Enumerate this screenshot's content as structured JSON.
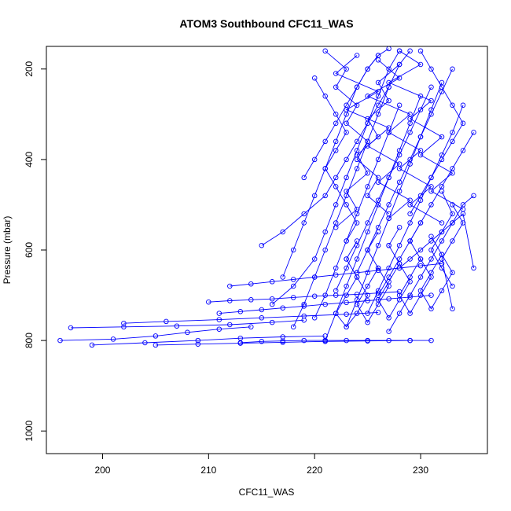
{
  "chart_data": {
    "type": "scatter",
    "title": "ATOM3 Southbound CFC11_WAS",
    "xlabel": "CFC11_WAS",
    "ylabel": "Pressure (mbar)",
    "xlim": [
      194.7,
      236.3
    ],
    "ylim": [
      1050,
      150
    ],
    "y_reversed": true,
    "x_ticks": [
      200,
      210,
      220,
      230
    ],
    "y_ticks": [
      200,
      400,
      600,
      800,
      1000
    ],
    "grid": false,
    "legend": "none",
    "marker": "open-circle",
    "color": "#0000ff",
    "series": [
      {
        "x": [
          196,
          201,
          205,
          208,
          211,
          214
        ],
        "y": [
          800,
          797,
          790,
          782,
          775,
          770
        ]
      },
      {
        "x": [
          197,
          202,
          207,
          212,
          216,
          219
        ],
        "y": [
          772,
          770,
          768,
          765,
          760,
          755
        ]
      },
      {
        "x": [
          199,
          204,
          209,
          213,
          217,
          221
        ],
        "y": [
          810,
          805,
          800,
          795,
          792,
          790
        ]
      },
      {
        "x": [
          202,
          206,
          211,
          215,
          219,
          223,
          226
        ],
        "y": [
          762,
          758,
          754,
          750,
          746,
          742,
          738
        ]
      },
      {
        "x": [
          205,
          209,
          213,
          217,
          221,
          225,
          229
        ],
        "y": [
          810,
          808,
          806,
          804,
          802,
          801,
          800
        ]
      },
      {
        "x": [
          210,
          212,
          214,
          216,
          218,
          220,
          222,
          224,
          226,
          228
        ],
        "y": [
          715,
          712,
          710,
          708,
          705,
          702,
          700,
          698,
          695,
          692
        ]
      },
      {
        "x": [
          211,
          213,
          215,
          217,
          219,
          221,
          223,
          225,
          227,
          229,
          231
        ],
        "y": [
          740,
          736,
          732,
          728,
          724,
          720,
          716,
          712,
          708,
          704,
          700
        ]
      },
      {
        "x": [
          212,
          214,
          216,
          218,
          220,
          222,
          224,
          226,
          228,
          230,
          232
        ],
        "y": [
          680,
          675,
          670,
          665,
          660,
          655,
          650,
          645,
          640,
          635,
          630
        ]
      },
      {
        "x": [
          213,
          215,
          217,
          219,
          221,
          223,
          225,
          227,
          229,
          231
        ],
        "y": [
          805,
          802,
          801,
          800,
          800,
          800,
          800,
          800,
          800,
          800
        ]
      },
      {
        "x": [
          215,
          217,
          219,
          221,
          222,
          223,
          224,
          225,
          226,
          227
        ],
        "y": [
          590,
          560,
          520,
          480,
          440,
          400,
          360,
          320,
          280,
          240
        ]
      },
      {
        "x": [
          216,
          218,
          220,
          221,
          222,
          223,
          224,
          225,
          226,
          227,
          228
        ],
        "y": [
          720,
          680,
          620,
          560,
          500,
          440,
          380,
          320,
          260,
          200,
          160
        ]
      },
      {
        "x": [
          217,
          218,
          219,
          220,
          221,
          222,
          223,
          224,
          225,
          226
        ],
        "y": [
          660,
          600,
          540,
          480,
          420,
          360,
          300,
          240,
          200,
          170
        ]
      },
      {
        "x": [
          218,
          219,
          220,
          221,
          222,
          223,
          224,
          225,
          226,
          227,
          228,
          229
        ],
        "y": [
          770,
          720,
          660,
          600,
          540,
          480,
          420,
          360,
          300,
          240,
          190,
          160
        ]
      },
      {
        "x": [
          219,
          220,
          221,
          222,
          223,
          224,
          225,
          226,
          227
        ],
        "y": [
          440,
          400,
          360,
          320,
          280,
          240,
          200,
          170,
          155
        ]
      },
      {
        "x": [
          220,
          221,
          222,
          223,
          224,
          225,
          226,
          227,
          228
        ],
        "y": [
          750,
          700,
          640,
          580,
          520,
          460,
          400,
          340,
          280
        ]
      },
      {
        "x": [
          221,
          222,
          223,
          224,
          225,
          226,
          227,
          228,
          229,
          230
        ],
        "y": [
          800,
          740,
          680,
          620,
          560,
          500,
          440,
          380,
          320,
          260
        ]
      },
      {
        "x": [
          222,
          223,
          224,
          225,
          226,
          227,
          228,
          229,
          230,
          231
        ],
        "y": [
          690,
          640,
          590,
          540,
          490,
          440,
          390,
          340,
          290,
          240
        ]
      },
      {
        "x": [
          223,
          224,
          225,
          226,
          227,
          228,
          229,
          230,
          231,
          232
        ],
        "y": [
          770,
          710,
          650,
          590,
          530,
          470,
          410,
          350,
          290,
          230
        ]
      },
      {
        "x": [
          224,
          225,
          226,
          227,
          228,
          229,
          230,
          231,
          232,
          233
        ],
        "y": [
          650,
          600,
          550,
          500,
          450,
          400,
          350,
          300,
          250,
          200
        ]
      },
      {
        "x": [
          225,
          226,
          227,
          228,
          229,
          230,
          231,
          232,
          233,
          234
        ],
        "y": [
          740,
          690,
          640,
          590,
          540,
          490,
          440,
          390,
          340,
          280
        ]
      },
      {
        "x": [
          226,
          227,
          228,
          229,
          230,
          231,
          232,
          233,
          234,
          235
        ],
        "y": [
          700,
          660,
          620,
          580,
          540,
          500,
          460,
          420,
          380,
          340
        ]
      },
      {
        "x": [
          227,
          228,
          229,
          230,
          231,
          232,
          233,
          234,
          235
        ],
        "y": [
          780,
          740,
          700,
          660,
          620,
          580,
          540,
          500,
          480
        ]
      },
      {
        "x": [
          228,
          229,
          230,
          231,
          232,
          233,
          234,
          235
        ],
        "y": [
          640,
          620,
          600,
          580,
          560,
          540,
          520,
          640
        ]
      },
      {
        "x": [
          221,
          223,
          222,
          224,
          223,
          225,
          224,
          226,
          225,
          227
        ],
        "y": [
          160,
          200,
          240,
          280,
          320,
          360,
          400,
          440,
          480,
          520
        ]
      },
      {
        "x": [
          222,
          224,
          223,
          225,
          224,
          226,
          225,
          227,
          226,
          228
        ],
        "y": [
          550,
          510,
          470,
          430,
          390,
          350,
          310,
          270,
          230,
          190
        ]
      },
      {
        "x": [
          224,
          222,
          226,
          223,
          227,
          225,
          228,
          226,
          229,
          227
        ],
        "y": [
          170,
          210,
          250,
          290,
          330,
          370,
          410,
          450,
          490,
          530
        ]
      },
      {
        "x": [
          226,
          228,
          225,
          229,
          227,
          230,
          228,
          231,
          229,
          232
        ],
        "y": [
          180,
          220,
          260,
          300,
          340,
          380,
          420,
          460,
          500,
          540
        ]
      },
      {
        "x": [
          228,
          230,
          227,
          231,
          229,
          232,
          230,
          233,
          231,
          234
        ],
        "y": [
          160,
          190,
          230,
          270,
          310,
          350,
          390,
          430,
          470,
          510
        ]
      },
      {
        "x": [
          230,
          231,
          232,
          233,
          234,
          233,
          232,
          231,
          230,
          229
        ],
        "y": [
          160,
          200,
          240,
          280,
          320,
          360,
          400,
          440,
          480,
          520
        ]
      },
      {
        "x": [
          220,
          221,
          222,
          223,
          222,
          221,
          222,
          223,
          224,
          223
        ],
        "y": [
          220,
          260,
          300,
          340,
          380,
          420,
          460,
          500,
          540,
          580
        ]
      },
      {
        "x": [
          223,
          224,
          223,
          222,
          223,
          224,
          225,
          224,
          223,
          224
        ],
        "y": [
          620,
          660,
          700,
          740,
          770,
          740,
          700,
          660,
          620,
          580
        ]
      },
      {
        "x": [
          225,
          226,
          225,
          224,
          225,
          226,
          227,
          226,
          225,
          226
        ],
        "y": [
          600,
          640,
          680,
          720,
          760,
          720,
          680,
          640,
          600,
          560
        ]
      },
      {
        "x": [
          227,
          228,
          227,
          226,
          227,
          228,
          229,
          228,
          227,
          228
        ],
        "y": [
          590,
          630,
          670,
          710,
          750,
          710,
          670,
          630,
          590,
          550
        ]
      },
      {
        "x": [
          229,
          230,
          229,
          228,
          229,
          230,
          231,
          230,
          229,
          230
        ],
        "y": [
          580,
          620,
          660,
          700,
          740,
          700,
          660,
          620,
          580,
          540
        ]
      },
      {
        "x": [
          231,
          232,
          231,
          230,
          231,
          232,
          233,
          232
        ],
        "y": [
          570,
          610,
          650,
          690,
          730,
          690,
          650,
          610
        ]
      },
      {
        "x": [
          232,
          233,
          232,
          231,
          232,
          233
        ],
        "y": [
          470,
          520,
          560,
          600,
          640,
          680
        ]
      },
      {
        "x": [
          233,
          234,
          233,
          232,
          233
        ],
        "y": [
          500,
          540,
          580,
          620,
          730
        ]
      }
    ]
  }
}
